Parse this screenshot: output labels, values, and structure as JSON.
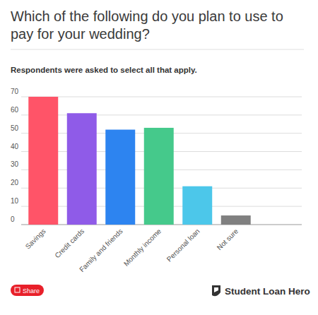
{
  "chart_data": {
    "type": "bar",
    "title": "Which of the following do you plan to use to pay for your wedding?",
    "subtitle": "Respondents were asked to select all that apply.",
    "categories": [
      "Savings",
      "Credit cards",
      "Family and friends",
      "Monthly income",
      "Personal loan",
      "Not sure"
    ],
    "values": [
      70,
      61,
      52,
      53,
      21,
      5
    ],
    "colors": [
      "#ff5468",
      "#8f5be8",
      "#2d84f0",
      "#45c98b",
      "#4cc7ea",
      "#808080"
    ],
    "ylim": [
      0,
      70
    ],
    "yticks": [
      0,
      10,
      20,
      30,
      40,
      50,
      60,
      70
    ],
    "grid": true
  },
  "footer": {
    "share": "Share",
    "brand": "Student Loan Hero"
  }
}
